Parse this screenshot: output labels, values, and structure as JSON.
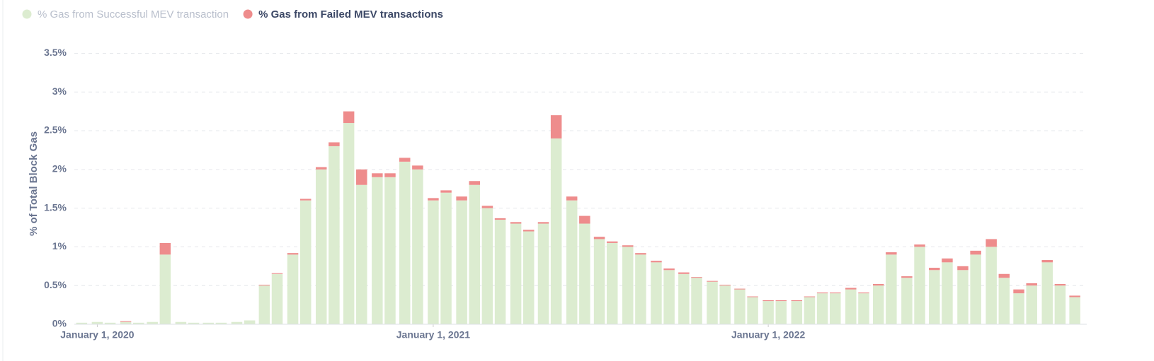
{
  "chart_data": {
    "type": "stacked-bar",
    "y_label": "% of Total Block Gas",
    "x": [
      "2019-12-15",
      "2020-01-01",
      "2020-01-15",
      "2020-02-01",
      "2020-02-15",
      "2020-03-01",
      "2020-03-15",
      "2020-04-01",
      "2020-04-15",
      "2020-05-01",
      "2020-05-15",
      "2020-06-01",
      "2020-06-15",
      "2020-07-01",
      "2020-07-15",
      "2020-08-01",
      "2020-08-15",
      "2020-09-01",
      "2020-09-15",
      "2020-10-01",
      "2020-10-15",
      "2020-11-01",
      "2020-11-15",
      "2020-12-01",
      "2020-12-15",
      "2021-01-01",
      "2021-01-15",
      "2021-02-01",
      "2021-02-15",
      "2021-03-01",
      "2021-03-15",
      "2021-04-01",
      "2021-04-15",
      "2021-05-01",
      "2021-05-15",
      "2021-06-01",
      "2021-06-15",
      "2021-07-01",
      "2021-07-15",
      "2021-08-01",
      "2021-08-15",
      "2021-09-01",
      "2021-09-15",
      "2021-10-01",
      "2021-10-15",
      "2021-11-01",
      "2021-11-15",
      "2021-12-01",
      "2021-12-15",
      "2022-01-01",
      "2022-01-15",
      "2022-02-01",
      "2022-02-15",
      "2022-03-01",
      "2022-03-15",
      "2022-04-01",
      "2022-04-15",
      "2022-05-01",
      "2022-05-15",
      "2022-06-01",
      "2022-06-15",
      "2022-07-01",
      "2022-07-15",
      "2022-08-01",
      "2022-08-15",
      "2022-09-01",
      "2022-09-15",
      "2022-10-01",
      "2022-10-15",
      "2022-11-01",
      "2022-11-15",
      "2022-12-01"
    ],
    "series": [
      {
        "name": "% Gas from Successful MEV transaction",
        "color": "#dcecd0",
        "values": [
          0.02,
          0.03,
          0.02,
          0.03,
          0.02,
          0.03,
          0.9,
          0.03,
          0.02,
          0.02,
          0.02,
          0.03,
          0.05,
          0.5,
          0.65,
          0.9,
          1.6,
          2.0,
          2.3,
          2.6,
          1.8,
          1.9,
          1.9,
          2.1,
          2.0,
          1.6,
          1.7,
          1.6,
          1.8,
          1.5,
          1.35,
          1.3,
          1.2,
          1.3,
          2.4,
          1.6,
          1.3,
          1.1,
          1.05,
          1.0,
          0.9,
          0.8,
          0.7,
          0.65,
          0.6,
          0.55,
          0.5,
          0.45,
          0.35,
          0.3,
          0.3,
          0.3,
          0.35,
          0.4,
          0.4,
          0.45,
          0.4,
          0.5,
          0.9,
          0.6,
          1.0,
          0.7,
          0.8,
          0.7,
          0.9,
          1.0,
          0.6,
          0.4,
          0.5,
          0.8,
          0.5,
          0.35
        ]
      },
      {
        "name": "% Gas from Failed MEV transactions",
        "color": "#ee8c8c",
        "values": [
          0,
          0,
          0,
          0.01,
          0,
          0,
          0.15,
          0,
          0,
          0,
          0,
          0,
          0,
          0.01,
          0.01,
          0.02,
          0.02,
          0.03,
          0.05,
          0.15,
          0.2,
          0.05,
          0.05,
          0.05,
          0.05,
          0.03,
          0.03,
          0.05,
          0.05,
          0.03,
          0.02,
          0.02,
          0.02,
          0.02,
          0.3,
          0.05,
          0.1,
          0.03,
          0.02,
          0.02,
          0.02,
          0.02,
          0.02,
          0.02,
          0.01,
          0.01,
          0.01,
          0.01,
          0.01,
          0.01,
          0.01,
          0.01,
          0.01,
          0.01,
          0.01,
          0.02,
          0.01,
          0.02,
          0.03,
          0.02,
          0.03,
          0.03,
          0.05,
          0.05,
          0.05,
          0.1,
          0.05,
          0.05,
          0.03,
          0.03,
          0.02,
          0.02
        ]
      }
    ],
    "xlim": [
      "2019-12-07",
      "2022-12-14"
    ],
    "xticks": [
      {
        "value": "2020-01-01",
        "label": "January 1, 2020"
      },
      {
        "value": "2021-01-01",
        "label": "January 1, 2021"
      },
      {
        "value": "2022-01-01",
        "label": "January 1, 2022"
      }
    ],
    "ylim": [
      0,
      3.65
    ],
    "yticks": [
      {
        "value": 0,
        "label": "0%"
      },
      {
        "value": 0.5,
        "label": "0.5%"
      },
      {
        "value": 1,
        "label": "1%"
      },
      {
        "value": 1.5,
        "label": "1.5%"
      },
      {
        "value": 2,
        "label": "2%"
      },
      {
        "value": 2.5,
        "label": "2.5%"
      },
      {
        "value": 3,
        "label": "3%"
      },
      {
        "value": 3.5,
        "label": "3.5%"
      }
    ],
    "grid": true,
    "legend": "top-left"
  }
}
